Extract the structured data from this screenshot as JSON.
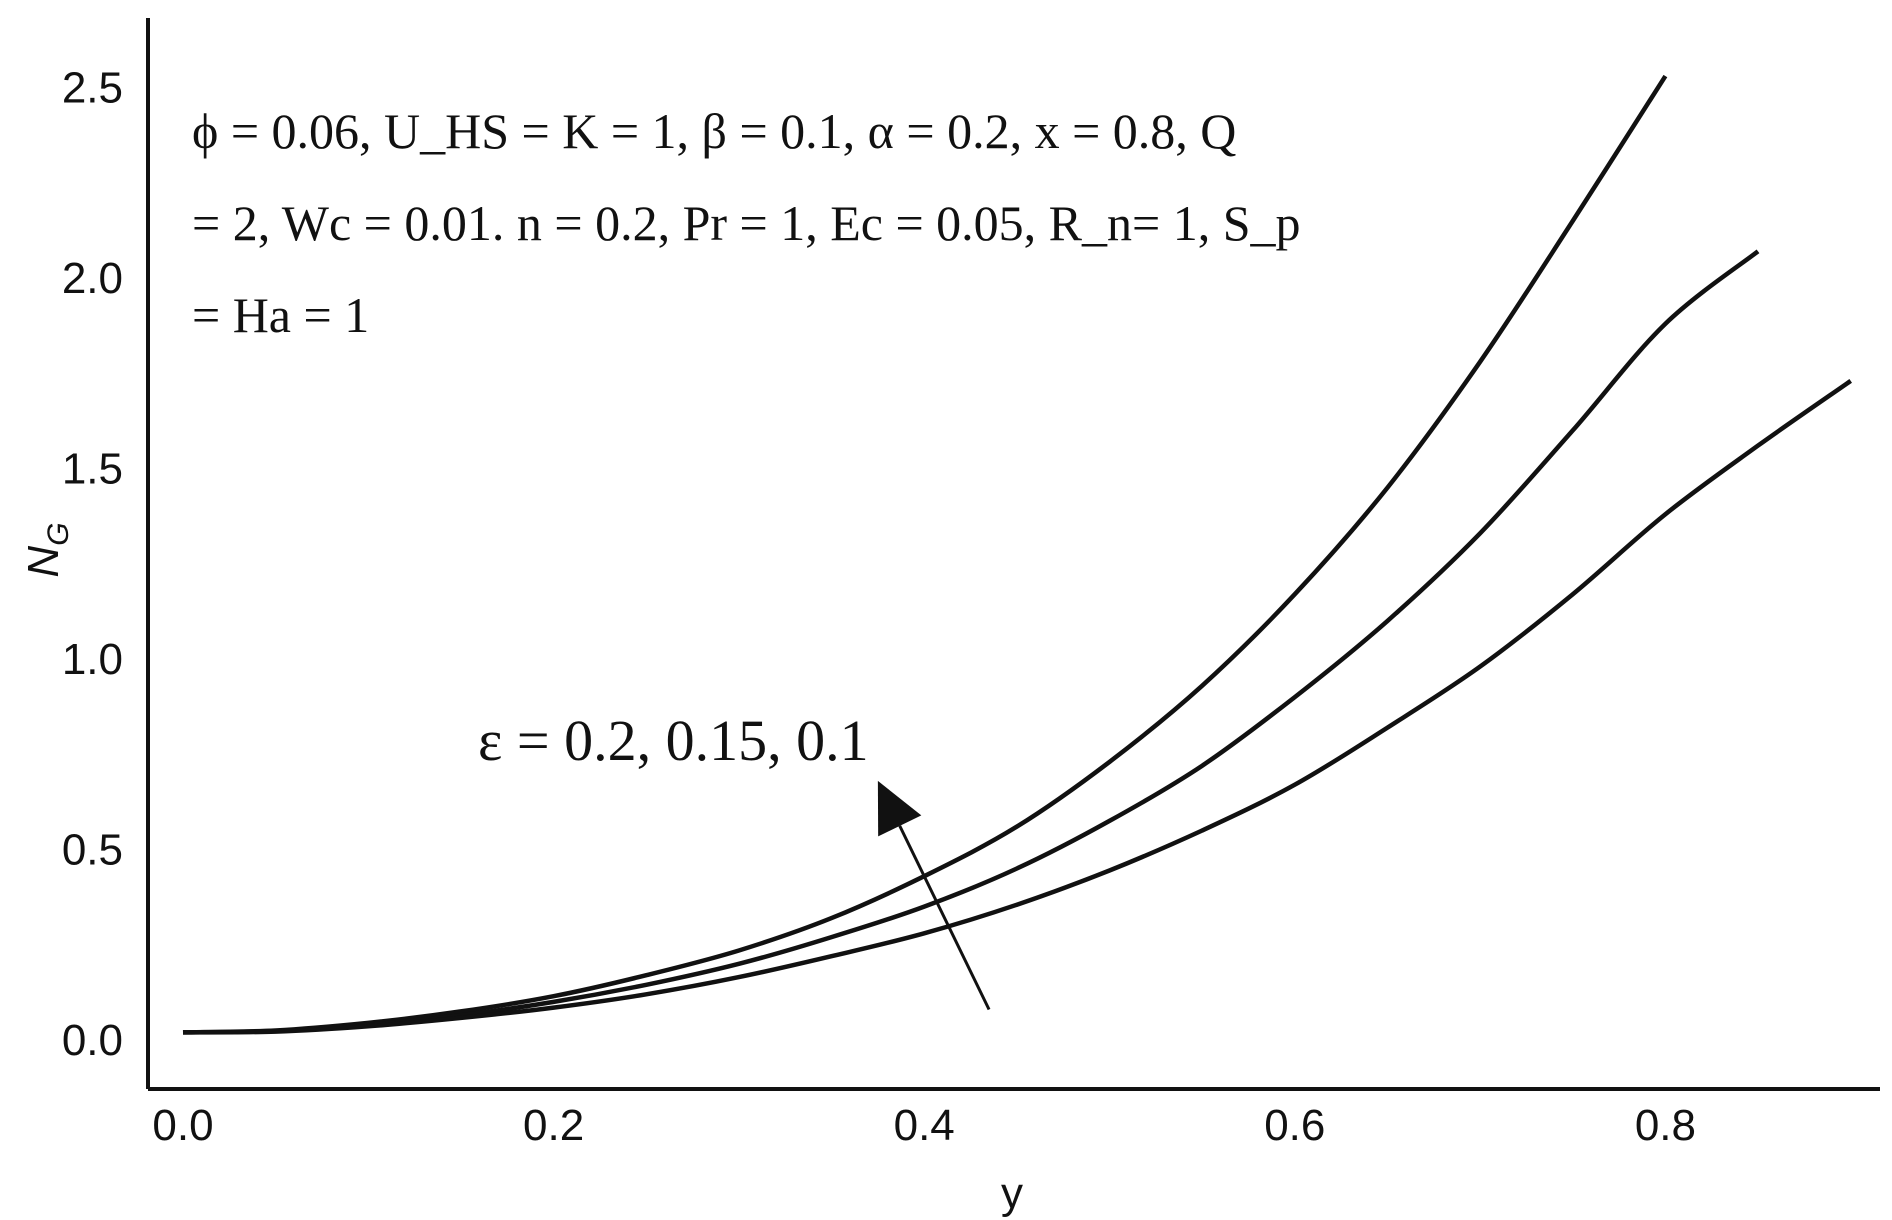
{
  "chart_data": {
    "type": "line",
    "xlabel": "y",
    "ylabel": "N",
    "ylabel_sub": "G",
    "xlim": [
      -0.04,
      0.92
    ],
    "ylim": [
      -0.12,
      2.7
    ],
    "xticks": [
      "0.0",
      "0.2",
      "0.4",
      "0.6",
      "0.8"
    ],
    "yticks": [
      "0.0",
      "0.5",
      "1.0",
      "1.5",
      "2.0",
      "2.5"
    ],
    "grid": false,
    "legend": "none",
    "annotation_lines": [
      "ϕ = 0.06, U_HS = K = 1, β = 0.1, α = 0.2, x = 0.8, Q",
      "= 2, Wc = 0.01. n = 0.2, Pr = 1, Ec = 0.05, R_n= 1, S_p",
      "= Ha = 1"
    ],
    "arrow_label": "ε = 0.2, 0.15, 0.1",
    "arrow": {
      "from": [
        0.435,
        0.08
      ],
      "to": [
        0.375,
        0.68
      ]
    },
    "series": [
      {
        "x": [
          0.0,
          0.05,
          0.1,
          0.15,
          0.2,
          0.25,
          0.3,
          0.35,
          0.4,
          0.45,
          0.5,
          0.55,
          0.6,
          0.65,
          0.7,
          0.75,
          0.8
        ],
        "values": [
          0.02,
          0.025,
          0.045,
          0.075,
          0.115,
          0.17,
          0.235,
          0.32,
          0.43,
          0.56,
          0.73,
          0.93,
          1.17,
          1.45,
          1.78,
          2.15,
          2.53
        ]
      },
      {
        "x": [
          0.0,
          0.05,
          0.1,
          0.15,
          0.2,
          0.25,
          0.3,
          0.35,
          0.4,
          0.45,
          0.5,
          0.55,
          0.6,
          0.65,
          0.7,
          0.75,
          0.8,
          0.85
        ],
        "values": [
          0.02,
          0.024,
          0.04,
          0.065,
          0.1,
          0.145,
          0.2,
          0.27,
          0.35,
          0.45,
          0.575,
          0.72,
          0.9,
          1.1,
          1.33,
          1.6,
          1.88,
          2.07
        ]
      },
      {
        "x": [
          0.0,
          0.05,
          0.1,
          0.15,
          0.2,
          0.25,
          0.3,
          0.35,
          0.4,
          0.45,
          0.5,
          0.55,
          0.6,
          0.65,
          0.7,
          0.75,
          0.8,
          0.85,
          0.9
        ],
        "values": [
          0.02,
          0.022,
          0.036,
          0.058,
          0.085,
          0.12,
          0.165,
          0.22,
          0.28,
          0.355,
          0.445,
          0.55,
          0.67,
          0.82,
          0.98,
          1.17,
          1.38,
          1.56,
          1.73
        ]
      }
    ]
  }
}
